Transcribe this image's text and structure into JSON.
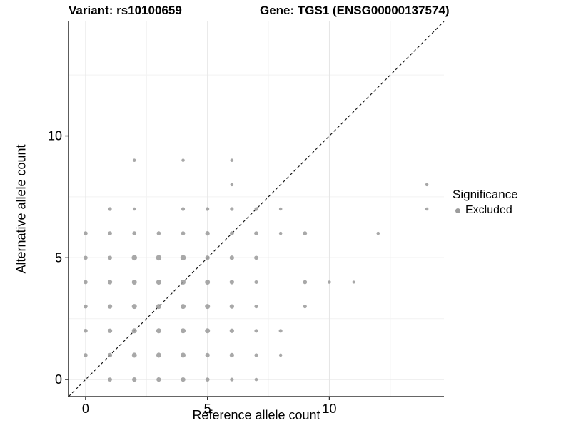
{
  "titles": {
    "variant": "Variant: rs10100659",
    "gene": "Gene: TGS1 (ENSG00000137574)"
  },
  "legend": {
    "title": "Significance",
    "items": [
      {
        "label": "Excluded",
        "color": "#9c9c9c"
      }
    ]
  },
  "colors": {
    "point": "#9c9c9c",
    "grid_major": "#e6e6e6",
    "grid_minor": "#f2f2f2",
    "axis": "#333333",
    "identity_line": "#1a1a1a",
    "background": "#ffffff"
  },
  "chart_data": {
    "type": "scatter",
    "title": "",
    "xlabel": "Reference allele count",
    "ylabel": "Alternative allele count",
    "xlim": [
      -0.7,
      14.7
    ],
    "ylim": [
      -0.7,
      14.7
    ],
    "x_ticks": [
      0,
      5,
      10
    ],
    "y_ticks": [
      0,
      5,
      10
    ],
    "x_minor_ticks": [
      2.5,
      7.5,
      12.5
    ],
    "y_minor_ticks": [
      2.5,
      7.5,
      12.5
    ],
    "grid": true,
    "legend_position": "right",
    "identity_line": {
      "style": "dashed",
      "equation": "y = x"
    },
    "series": [
      {
        "name": "Excluded",
        "color": "#9c9c9c",
        "point_format": "[x, y, radius_px]",
        "points": [
          [
            1,
            0,
            1.5
          ],
          [
            2,
            0,
            1.65
          ],
          [
            3,
            0,
            1.65
          ],
          [
            4,
            0,
            1.65
          ],
          [
            5,
            0,
            1.5
          ],
          [
            6,
            0,
            1.35
          ],
          [
            7,
            0,
            1.2
          ],
          [
            0,
            1,
            1.5
          ],
          [
            1,
            1,
            1.65
          ],
          [
            2,
            1,
            1.85
          ],
          [
            3,
            1,
            1.85
          ],
          [
            4,
            1,
            1.85
          ],
          [
            5,
            1,
            1.65
          ],
          [
            6,
            1,
            1.65
          ],
          [
            7,
            1,
            1.35
          ],
          [
            8,
            1,
            1.2
          ],
          [
            0,
            2,
            1.5
          ],
          [
            1,
            2,
            1.65
          ],
          [
            2,
            2,
            1.85
          ],
          [
            3,
            2,
            1.85
          ],
          [
            4,
            2,
            1.85
          ],
          [
            5,
            2,
            1.85
          ],
          [
            6,
            2,
            1.65
          ],
          [
            7,
            2,
            1.35
          ],
          [
            8,
            2,
            1.35
          ],
          [
            0,
            3,
            1.5
          ],
          [
            1,
            3,
            1.65
          ],
          [
            2,
            3,
            1.85
          ],
          [
            3,
            3,
            1.85
          ],
          [
            4,
            3,
            1.85
          ],
          [
            5,
            3,
            1.85
          ],
          [
            6,
            3,
            1.65
          ],
          [
            7,
            3,
            1.35
          ],
          [
            9,
            3,
            1.35
          ],
          [
            0,
            4,
            1.5
          ],
          [
            1,
            4,
            1.65
          ],
          [
            2,
            4,
            1.85
          ],
          [
            3,
            4,
            1.85
          ],
          [
            4,
            4,
            1.85
          ],
          [
            5,
            4,
            1.85
          ],
          [
            6,
            4,
            1.65
          ],
          [
            7,
            4,
            1.35
          ],
          [
            9,
            4,
            1.5
          ],
          [
            10,
            4,
            1.2
          ],
          [
            11,
            4,
            1.1
          ],
          [
            0,
            5,
            1.5
          ],
          [
            1,
            5,
            1.5
          ],
          [
            2,
            5,
            2.0
          ],
          [
            3,
            5,
            2.0
          ],
          [
            4,
            5,
            2.0
          ],
          [
            5,
            5,
            1.65
          ],
          [
            6,
            5,
            1.65
          ],
          [
            7,
            5,
            1.5
          ],
          [
            0,
            6,
            1.5
          ],
          [
            1,
            6,
            1.5
          ],
          [
            2,
            6,
            1.5
          ],
          [
            3,
            6,
            1.5
          ],
          [
            4,
            6,
            1.5
          ],
          [
            5,
            6,
            1.65
          ],
          [
            6,
            6,
            1.5
          ],
          [
            7,
            6,
            1.5
          ],
          [
            8,
            6,
            1.2
          ],
          [
            9,
            6,
            1.5
          ],
          [
            12,
            6,
            1.2
          ],
          [
            1,
            7,
            1.35
          ],
          [
            2,
            7,
            1.2
          ],
          [
            4,
            7,
            1.35
          ],
          [
            5,
            7,
            1.35
          ],
          [
            6,
            7,
            1.35
          ],
          [
            7,
            7,
            1.35
          ],
          [
            8,
            7,
            1.2
          ],
          [
            14,
            7,
            1.2
          ],
          [
            6,
            8,
            1.2
          ],
          [
            14,
            8,
            1.2
          ],
          [
            2,
            9,
            1.2
          ],
          [
            4,
            9,
            1.2
          ],
          [
            6,
            9,
            1.2
          ]
        ]
      }
    ]
  }
}
